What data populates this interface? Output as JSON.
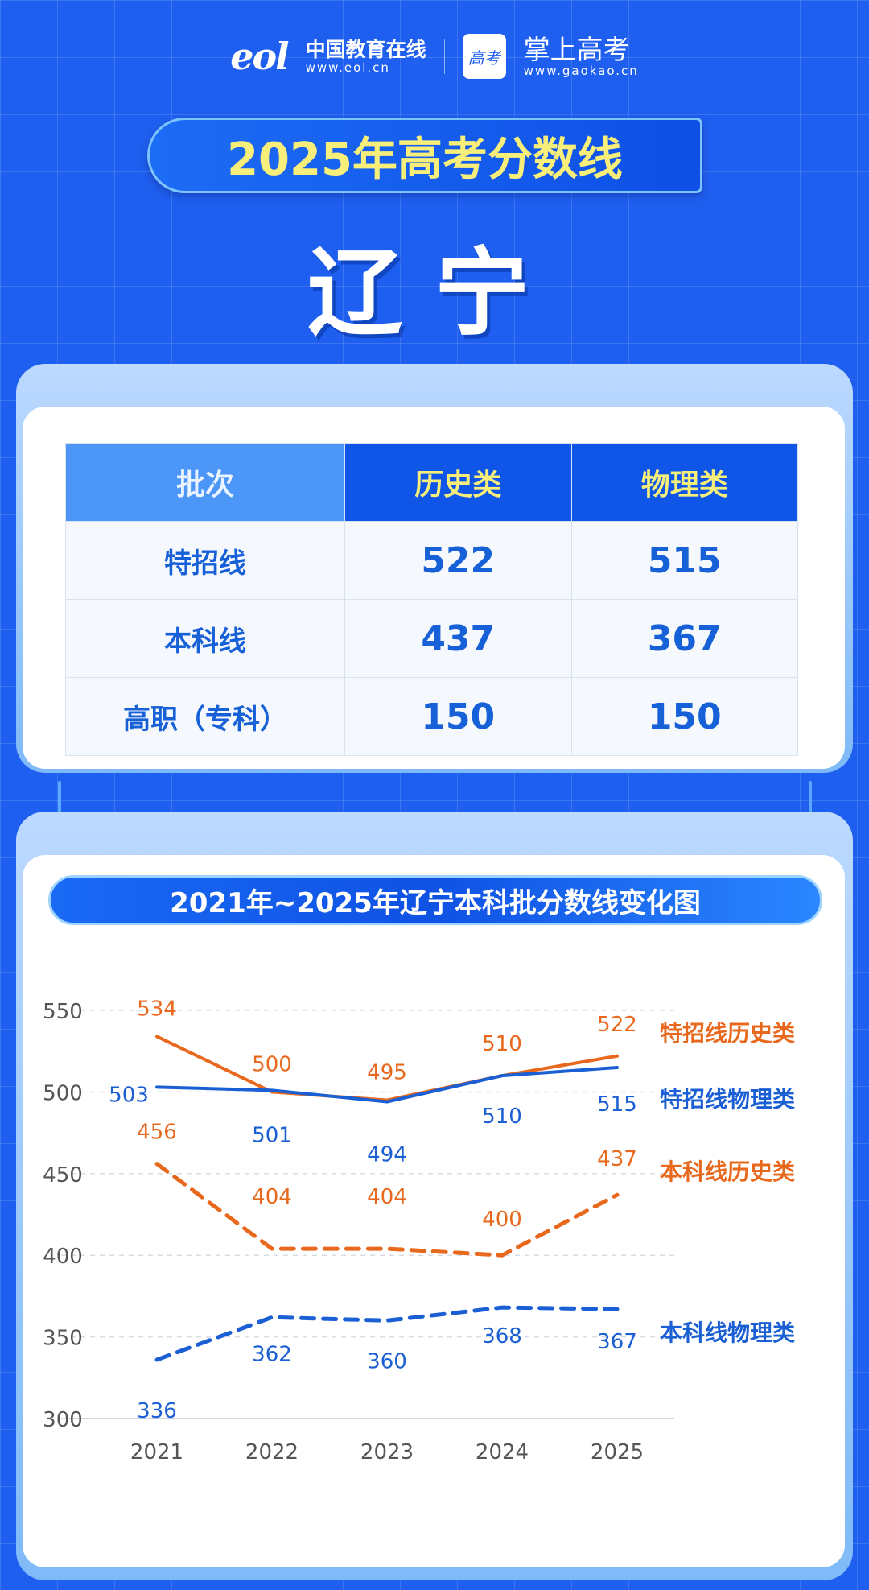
{
  "header": {
    "eol_logo": "eol",
    "eol_name": "中国教育在线",
    "eol_url": "www.eol.cn",
    "gaokao_logo": "高考",
    "gaokao_name": "掌上高考",
    "gaokao_url": "www.gaokao.cn"
  },
  "title": "2025年高考分数线",
  "province": "辽宁",
  "table": {
    "columns": [
      "批次",
      "历史类",
      "物理类"
    ],
    "rows": [
      {
        "label": "特招线",
        "history": "522",
        "physics": "515"
      },
      {
        "label": "本科线",
        "history": "437",
        "physics": "367"
      },
      {
        "label": "高职（专科）",
        "history": "150",
        "physics": "150"
      }
    ]
  },
  "colors": {
    "orange": "#e8691e",
    "blue": "#1b5fd4",
    "accent_yellow": "#f7ef7a",
    "background": "#1f5ff0"
  },
  "chart_data": {
    "type": "line",
    "title": "2021年~2025年辽宁本科批分数线变化图",
    "categories": [
      "2021",
      "2022",
      "2023",
      "2024",
      "2025"
    ],
    "ylim": [
      300,
      550
    ],
    "yticks": [
      "300",
      "350",
      "400",
      "450",
      "500",
      "550"
    ],
    "grid": true,
    "legend_placement": "right",
    "series": [
      {
        "name": "特招线历史类",
        "values": [
          534,
          500,
          495,
          510,
          522
        ],
        "color": "#e8691e",
        "style": "solid"
      },
      {
        "name": "特招线物理类",
        "values": [
          503,
          501,
          494,
          510,
          515
        ],
        "color": "#1b5fd4",
        "style": "solid"
      },
      {
        "name": "本科线历史类",
        "values": [
          456,
          404,
          404,
          400,
          437
        ],
        "color": "#e8691e",
        "style": "dashed"
      },
      {
        "name": "本科线物理类",
        "values": [
          336,
          362,
          360,
          368,
          367
        ],
        "color": "#1b5fd4",
        "style": "dashed"
      }
    ]
  }
}
